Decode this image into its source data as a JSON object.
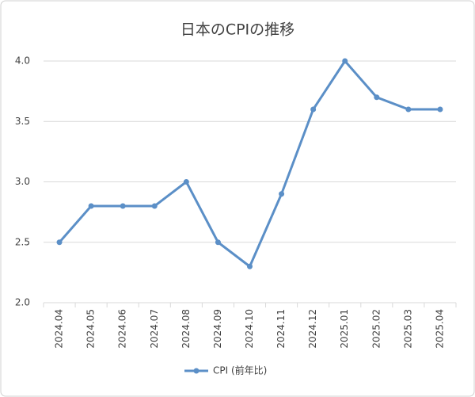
{
  "chart_data": {
    "type": "line",
    "title": "日本のCPIの推移",
    "categories": [
      "2024.04",
      "2024.05",
      "2024.06",
      "2024.07",
      "2024.08",
      "2024.09",
      "2024.10",
      "2024.11",
      "2024.12",
      "2025.01",
      "2025.02",
      "2025.03",
      "2025.04"
    ],
    "series": [
      {
        "name": "CPI (前年比)",
        "color": "#5b8fc7",
        "values": [
          2.5,
          2.8,
          2.8,
          2.8,
          3.0,
          2.5,
          2.3,
          2.9,
          3.6,
          4.0,
          3.7,
          3.6,
          3.6
        ]
      }
    ],
    "ylim": [
      2,
      4
    ],
    "yticks": [
      {
        "value": 2,
        "label": "2.0"
      },
      {
        "value": 2.5,
        "label": "2.5"
      },
      {
        "value": 3,
        "label": "3.0"
      },
      {
        "value": 3.5,
        "label": "3.5"
      },
      {
        "value": 4,
        "label": "4.0"
      }
    ],
    "grid": true,
    "legend": "bottom"
  }
}
